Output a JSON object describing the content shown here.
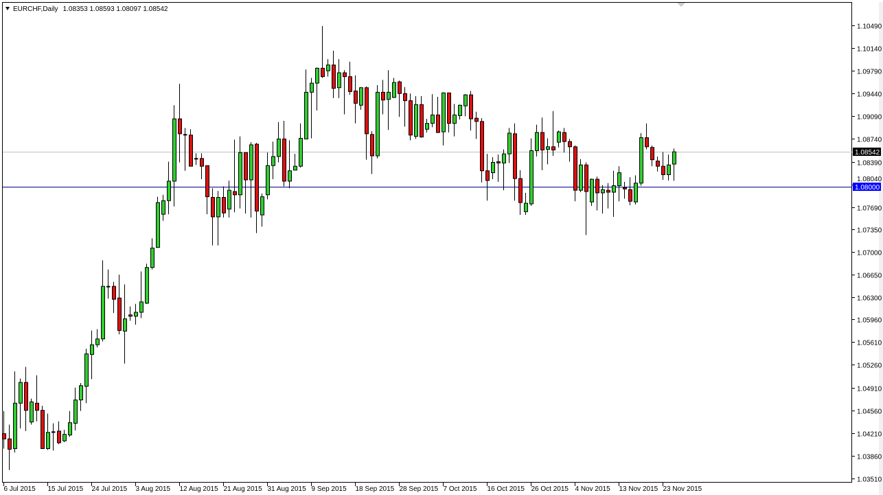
{
  "header": {
    "symbol": "EURCHF,Daily",
    "ohlc_text": "1.08353 1.08593 1.08097 1.08542",
    "menu_icon": "triangle-down-icon"
  },
  "chart_data": {
    "type": "candlestick",
    "symbol": "EURCHF",
    "timeframe": "Daily",
    "ylim": [
      1.03446,
      1.10828
    ],
    "grid": false,
    "colors": {
      "bull": "#32CD32",
      "bear": "#DD1111",
      "outline": "#000000",
      "bid_line": "#C0C0C0",
      "horizontal_line": "#00008B",
      "bid_label_bg": "#000000",
      "line_label_bg": "#0000FF"
    },
    "y_ticks": [
      "1.10490",
      "1.10140",
      "1.09790",
      "1.09440",
      "1.09090",
      "1.08740",
      "1.08390",
      "1.08040",
      "1.07690",
      "1.07350",
      "1.07000",
      "1.06650",
      "1.06300",
      "1.05960",
      "1.05610",
      "1.05260",
      "1.04910",
      "1.04560",
      "1.04210",
      "1.03860",
      "1.03510"
    ],
    "x_labels": [
      {
        "bar": 0,
        "text": "6 Jul 2015"
      },
      {
        "bar": 8,
        "text": "15 Jul 2015"
      },
      {
        "bar": 16,
        "text": "24 Jul 2015"
      },
      {
        "bar": 24,
        "text": "3 Aug 2015"
      },
      {
        "bar": 32,
        "text": "12 Aug 2015"
      },
      {
        "bar": 40,
        "text": "21 Aug 2015"
      },
      {
        "bar": 48,
        "text": "31 Aug 2015"
      },
      {
        "bar": 56,
        "text": "9 Sep 2015"
      },
      {
        "bar": 64,
        "text": "18 Sep 2015"
      },
      {
        "bar": 72,
        "text": "28 Sep 2015"
      },
      {
        "bar": 80,
        "text": "7 Oct 2015"
      },
      {
        "bar": 88,
        "text": "16 Oct 2015"
      },
      {
        "bar": 96,
        "text": "26 Oct 2015"
      },
      {
        "bar": 104,
        "text": "4 Nov 2015"
      },
      {
        "bar": 112,
        "text": "13 Nov 2015"
      },
      {
        "bar": 120,
        "text": "23 Nov 2015"
      }
    ],
    "bid_line": {
      "value": 1.08542,
      "label": "1.08542"
    },
    "horizontal_line": {
      "value": 1.08,
      "label": "1.08000"
    },
    "ohlc": [
      [
        1.042,
        1.0455,
        1.0397,
        1.0412
      ],
      [
        1.0412,
        1.0434,
        1.0364,
        1.0396
      ],
      [
        1.0397,
        1.0516,
        1.0391,
        1.0467
      ],
      [
        1.0467,
        1.0505,
        1.0428,
        1.0499
      ],
      [
        1.0499,
        1.0523,
        1.0424,
        1.0456
      ],
      [
        1.0438,
        1.0474,
        1.0434,
        1.0469
      ],
      [
        1.0467,
        1.051,
        1.0439,
        1.0456
      ],
      [
        1.0456,
        1.0463,
        1.0397,
        1.0397
      ],
      [
        1.0397,
        1.0451,
        1.0395,
        1.0422
      ],
      [
        1.0422,
        1.0436,
        1.0394,
        1.0423
      ],
      [
        1.0424,
        1.0439,
        1.0404,
        1.0406
      ],
      [
        1.0409,
        1.0426,
        1.0407,
        1.0419
      ],
      [
        1.0418,
        1.0455,
        1.0415,
        1.0437
      ],
      [
        1.0436,
        1.0491,
        1.0425,
        1.0472
      ],
      [
        1.0472,
        1.0498,
        1.0455,
        1.0494
      ],
      [
        1.0493,
        1.0551,
        1.0467,
        1.0543
      ],
      [
        1.0542,
        1.0579,
        1.0504,
        1.0557
      ],
      [
        1.0557,
        1.0581,
        1.0553,
        1.0566
      ],
      [
        1.0566,
        1.0687,
        1.0562,
        1.0647
      ],
      [
        1.0647,
        1.0673,
        1.0628,
        1.0647
      ],
      [
        1.0647,
        1.0654,
        1.0606,
        1.0627
      ],
      [
        1.0629,
        1.0665,
        1.0573,
        1.0579
      ],
      [
        1.0578,
        1.065,
        1.0528,
        1.0597
      ],
      [
        1.0603,
        1.0616,
        1.0594,
        1.0601
      ],
      [
        1.0601,
        1.062,
        1.0588,
        1.0607
      ],
      [
        1.0607,
        1.067,
        1.0598,
        1.0623
      ],
      [
        1.0621,
        1.0682,
        1.062,
        1.0676
      ],
      [
        1.0676,
        1.0721,
        1.0673,
        1.0706
      ],
      [
        1.0707,
        1.0785,
        1.0706,
        1.0776
      ],
      [
        1.0758,
        1.0788,
        1.0748,
        1.0779
      ],
      [
        1.0779,
        1.0839,
        1.0758,
        1.0809
      ],
      [
        1.0809,
        1.0926,
        1.077,
        1.0905
      ],
      [
        1.0905,
        1.0959,
        1.0838,
        1.0882
      ],
      [
        1.0881,
        1.0891,
        1.0825,
        1.088
      ],
      [
        1.088,
        1.0889,
        1.0832,
        1.0832
      ],
      [
        1.0844,
        1.0852,
        1.0834,
        1.0843
      ],
      [
        1.0844,
        1.0852,
        1.0812,
        1.0832
      ],
      [
        1.0833,
        1.0833,
        1.0758,
        1.0785
      ],
      [
        1.0784,
        1.0798,
        1.071,
        1.0754
      ],
      [
        1.0754,
        1.0794,
        1.071,
        1.0784
      ],
      [
        1.0784,
        1.0801,
        1.0753,
        1.076
      ],
      [
        1.0766,
        1.081,
        1.0753,
        1.0795
      ],
      [
        1.0793,
        1.0873,
        1.0761,
        1.0788
      ],
      [
        1.0788,
        1.0878,
        1.0767,
        1.0853
      ],
      [
        1.0853,
        1.0853,
        1.0759,
        1.0811
      ],
      [
        1.0811,
        1.0869,
        1.0753,
        1.0865
      ],
      [
        1.0866,
        1.0868,
        1.0729,
        1.0763
      ],
      [
        1.0757,
        1.079,
        1.0739,
        1.0785
      ],
      [
        1.0788,
        1.0853,
        1.0781,
        1.0833
      ],
      [
        1.0833,
        1.087,
        1.0812,
        1.0847
      ],
      [
        1.0847,
        1.09,
        1.0838,
        1.0874
      ],
      [
        1.0874,
        1.0902,
        1.0801,
        1.0809
      ],
      [
        1.0809,
        1.0872,
        1.0798,
        1.0825
      ],
      [
        1.0826,
        1.0851,
        1.0826,
        1.0832
      ],
      [
        1.0832,
        1.0898,
        1.083,
        1.0875
      ],
      [
        1.0874,
        1.0981,
        1.0874,
        1.0946
      ],
      [
        1.0946,
        1.0968,
        1.0875,
        1.096
      ],
      [
        1.096,
        1.0984,
        1.0918,
        1.0983
      ],
      [
        1.0983,
        1.1048,
        1.0968,
        1.097
      ],
      [
        1.0979,
        1.0997,
        1.097,
        1.0988
      ],
      [
        1.0988,
        1.101,
        1.0937,
        1.0952
      ],
      [
        1.0953,
        1.0997,
        1.0937,
        1.0976
      ],
      [
        1.0976,
        1.098,
        1.0912,
        1.097
      ],
      [
        1.097,
        1.0993,
        1.0942,
        1.0947
      ],
      [
        1.0948,
        1.0972,
        1.0898,
        1.0929
      ],
      [
        1.0926,
        1.0954,
        1.0919,
        1.0953
      ],
      [
        1.0953,
        1.0955,
        1.0842,
        1.0882
      ],
      [
        1.0881,
        1.0886,
        1.082,
        1.0848
      ],
      [
        1.0848,
        1.0957,
        1.0844,
        1.0946
      ],
      [
        1.0946,
        1.0965,
        1.0912,
        1.0934
      ],
      [
        1.0935,
        1.098,
        1.0888,
        1.0946
      ],
      [
        1.0938,
        1.0968,
        1.0937,
        1.0961
      ],
      [
        1.0962,
        1.0964,
        1.0908,
        1.0944
      ],
      [
        1.0944,
        1.0954,
        1.0893,
        1.0933
      ],
      [
        1.0933,
        1.0944,
        1.0872,
        1.088
      ],
      [
        1.0878,
        1.094,
        1.0874,
        1.0927
      ],
      [
        1.0927,
        1.094,
        1.0876,
        1.0877
      ],
      [
        1.0889,
        1.0905,
        1.0884,
        1.0898
      ],
      [
        1.0898,
        1.0943,
        1.0892,
        1.0911
      ],
      [
        1.0911,
        1.0939,
        1.0883,
        1.0884
      ],
      [
        1.0885,
        1.0946,
        1.0864,
        1.0945
      ],
      [
        1.0945,
        1.0945,
        1.0884,
        1.0898
      ],
      [
        1.0898,
        1.0928,
        1.0878,
        1.0911
      ],
      [
        1.091,
        1.0927,
        1.0904,
        1.0926
      ],
      [
        1.0925,
        1.0943,
        1.0909,
        1.0942
      ],
      [
        1.0942,
        1.0948,
        1.0887,
        1.0905
      ],
      [
        1.0906,
        1.0916,
        1.0874,
        1.0901
      ],
      [
        1.0901,
        1.0906,
        1.0807,
        1.0825
      ],
      [
        1.0825,
        1.0851,
        1.0779,
        1.081
      ],
      [
        1.0822,
        1.0846,
        1.0812,
        1.0838
      ],
      [
        1.0839,
        1.085,
        1.0808,
        1.0837
      ],
      [
        1.0837,
        1.0858,
        1.0795,
        1.0851
      ],
      [
        1.0851,
        1.0891,
        1.0837,
        1.0883
      ],
      [
        1.0882,
        1.0898,
        1.0779,
        1.0813
      ],
      [
        1.0813,
        1.0826,
        1.0757,
        1.0776
      ],
      [
        1.0762,
        1.0791,
        1.0757,
        1.0775
      ],
      [
        1.0774,
        1.0875,
        1.0771,
        1.0856
      ],
      [
        1.0856,
        1.0896,
        1.0847,
        1.0884
      ],
      [
        1.0884,
        1.0907,
        1.0826,
        1.0857
      ],
      [
        1.0858,
        1.0875,
        1.0835,
        1.0862
      ],
      [
        1.0862,
        1.0917,
        1.0848,
        1.0857
      ],
      [
        1.0869,
        1.0887,
        1.0861,
        1.0885
      ],
      [
        1.0884,
        1.0891,
        1.0853,
        1.087
      ],
      [
        1.087,
        1.0874,
        1.0839,
        1.0862
      ],
      [
        1.0862,
        1.0864,
        1.0778,
        1.0795
      ],
      [
        1.0795,
        1.0843,
        1.0792,
        1.0834
      ],
      [
        1.0834,
        1.0838,
        1.0726,
        1.0793
      ],
      [
        1.0777,
        1.0813,
        1.0771,
        1.0812
      ],
      [
        1.0812,
        1.0816,
        1.0764,
        1.0791
      ],
      [
        1.0791,
        1.0803,
        1.0759,
        1.0796
      ],
      [
        1.0795,
        1.0806,
        1.0767,
        1.0792
      ],
      [
        1.0792,
        1.0825,
        1.0754,
        1.0802
      ],
      [
        1.0802,
        1.0832,
        1.0778,
        1.0822
      ],
      [
        1.0799,
        1.0808,
        1.0782,
        1.0797
      ],
      [
        1.0796,
        1.0815,
        1.0772,
        1.0778
      ],
      [
        1.0777,
        1.0818,
        1.0773,
        1.0806
      ],
      [
        1.0806,
        1.0883,
        1.0802,
        1.0876
      ],
      [
        1.0876,
        1.0898,
        1.0858,
        1.0862
      ],
      [
        1.0861,
        1.0864,
        1.0832,
        1.0842
      ],
      [
        1.084,
        1.0847,
        1.0824,
        1.0832
      ],
      [
        1.0832,
        1.0854,
        1.0811,
        1.0819
      ],
      [
        1.0819,
        1.085,
        1.081,
        1.0834
      ],
      [
        1.08353,
        1.08593,
        1.08097,
        1.08542
      ]
    ]
  }
}
